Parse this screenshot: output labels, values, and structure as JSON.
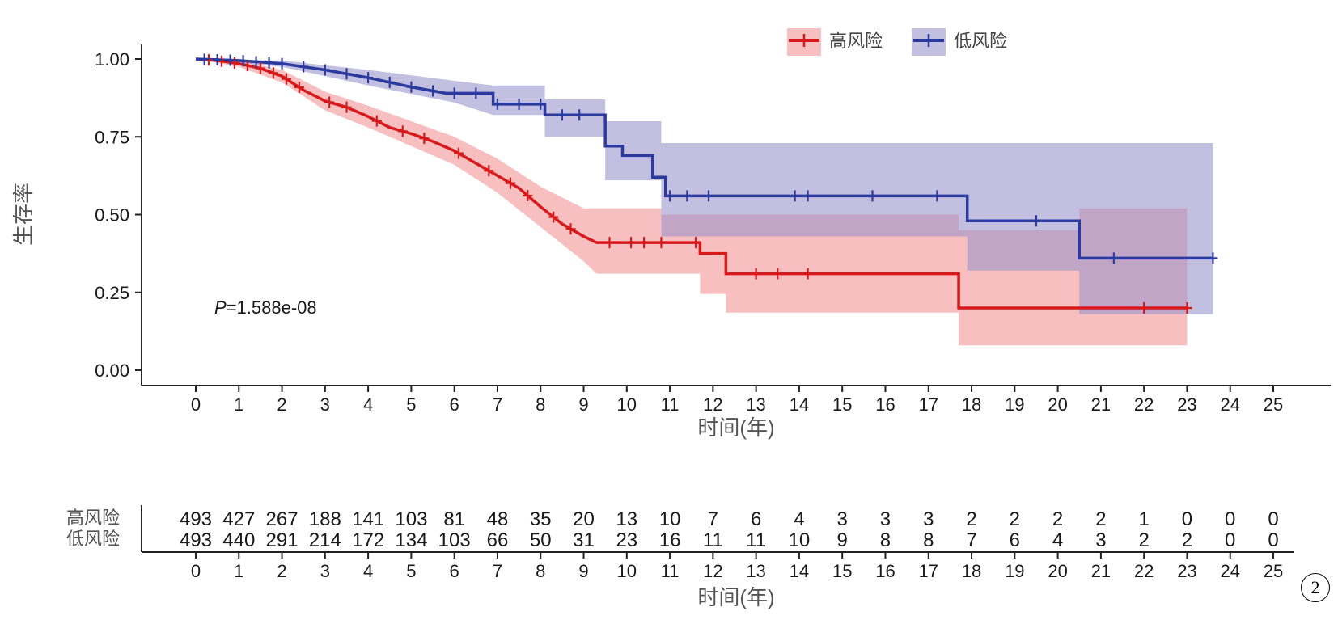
{
  "chart_data": {
    "type": "line",
    "subtype": "kaplan-meier",
    "title": "",
    "ylabel": "生存率",
    "xlabel": "时间(年)",
    "xlim": [
      0,
      25
    ],
    "ylim": [
      0,
      1
    ],
    "x_ticks": [
      0,
      1,
      2,
      3,
      4,
      5,
      6,
      7,
      8,
      9,
      10,
      11,
      12,
      13,
      14,
      15,
      16,
      17,
      18,
      19,
      20,
      21,
      22,
      23,
      24,
      25
    ],
    "y_ticks": [
      "0.00",
      "0.25",
      "0.50",
      "0.75",
      "1.00"
    ],
    "legend_position": "top-right",
    "grid": false,
    "annotation": {
      "prefix": "P",
      "value": "=1.588e-08"
    },
    "series": [
      {
        "name": "高风险",
        "color": "#d7191c",
        "ci_color": "#f08a8a",
        "points": [
          [
            0,
            1.0
          ],
          [
            0.5,
            0.995
          ],
          [
            1,
            0.985
          ],
          [
            1.5,
            0.97
          ],
          [
            2,
            0.945
          ],
          [
            2.5,
            0.9
          ],
          [
            3,
            0.865
          ],
          [
            3.5,
            0.845
          ],
          [
            4,
            0.815
          ],
          [
            4.5,
            0.78
          ],
          [
            5,
            0.76
          ],
          [
            5.5,
            0.735
          ],
          [
            6,
            0.705
          ],
          [
            6.5,
            0.665
          ],
          [
            7,
            0.625
          ],
          [
            7.5,
            0.585
          ],
          [
            8,
            0.525
          ],
          [
            8.5,
            0.47
          ],
          [
            9,
            0.43
          ],
          [
            9.3,
            0.41
          ],
          [
            11.7,
            0.41
          ],
          [
            11.7,
            0.375
          ],
          [
            12.3,
            0.375
          ],
          [
            12.3,
            0.31
          ],
          [
            17.7,
            0.31
          ],
          [
            17.7,
            0.2
          ],
          [
            23,
            0.2
          ]
        ],
        "ci_upper": [
          [
            0,
            1.0
          ],
          [
            1,
            0.995
          ],
          [
            2,
            0.965
          ],
          [
            3,
            0.895
          ],
          [
            4,
            0.85
          ],
          [
            5,
            0.8
          ],
          [
            6,
            0.75
          ],
          [
            7,
            0.68
          ],
          [
            8,
            0.59
          ],
          [
            9,
            0.52
          ],
          [
            10.8,
            0.52
          ],
          [
            10.8,
            0.5
          ],
          [
            17.7,
            0.5
          ],
          [
            17.7,
            0.45
          ],
          [
            20.5,
            0.45
          ],
          [
            20.5,
            0.52
          ],
          [
            23,
            0.52
          ]
        ],
        "ci_lower": [
          [
            0,
            1.0
          ],
          [
            1,
            0.975
          ],
          [
            2,
            0.925
          ],
          [
            3,
            0.835
          ],
          [
            4,
            0.78
          ],
          [
            5,
            0.72
          ],
          [
            6,
            0.66
          ],
          [
            7,
            0.57
          ],
          [
            8,
            0.46
          ],
          [
            9,
            0.35
          ],
          [
            9.3,
            0.31
          ],
          [
            11.7,
            0.31
          ],
          [
            11.7,
            0.245
          ],
          [
            12.3,
            0.245
          ],
          [
            12.3,
            0.185
          ],
          [
            17.7,
            0.185
          ],
          [
            17.7,
            0.08
          ],
          [
            23,
            0.08
          ]
        ],
        "censor_x": [
          0.3,
          0.6,
          0.9,
          1.2,
          1.5,
          1.8,
          2.1,
          2.4,
          3.1,
          3.5,
          4.2,
          4.8,
          5.3,
          6.1,
          6.8,
          7.3,
          7.7,
          8.3,
          8.7,
          9.6,
          10.1,
          10.4,
          10.8,
          11.6,
          13.0,
          13.5,
          14.2,
          22.0,
          23.0
        ]
      },
      {
        "name": "低风险",
        "color": "#2b3a9e",
        "ci_color": "#9b94cc",
        "points": [
          [
            0,
            1.0
          ],
          [
            1,
            0.995
          ],
          [
            2,
            0.985
          ],
          [
            3,
            0.965
          ],
          [
            4,
            0.94
          ],
          [
            5,
            0.91
          ],
          [
            5.8,
            0.89
          ],
          [
            6.9,
            0.89
          ],
          [
            6.9,
            0.855
          ],
          [
            8.1,
            0.855
          ],
          [
            8.1,
            0.82
          ],
          [
            9.5,
            0.82
          ],
          [
            9.5,
            0.72
          ],
          [
            9.9,
            0.72
          ],
          [
            9.9,
            0.69
          ],
          [
            10.6,
            0.69
          ],
          [
            10.6,
            0.62
          ],
          [
            10.9,
            0.62
          ],
          [
            10.9,
            0.56
          ],
          [
            17.9,
            0.56
          ],
          [
            17.9,
            0.48
          ],
          [
            20.5,
            0.48
          ],
          [
            20.5,
            0.36
          ],
          [
            23.6,
            0.36
          ]
        ],
        "ci_upper": [
          [
            0,
            1.0
          ],
          [
            2,
            0.995
          ],
          [
            4,
            0.965
          ],
          [
            6,
            0.93
          ],
          [
            6.9,
            0.915
          ],
          [
            8.1,
            0.915
          ],
          [
            8.1,
            0.87
          ],
          [
            9.5,
            0.87
          ],
          [
            9.5,
            0.8
          ],
          [
            10.8,
            0.8
          ],
          [
            10.8,
            0.73
          ],
          [
            23.6,
            0.73
          ]
        ],
        "ci_lower": [
          [
            0,
            1.0
          ],
          [
            2,
            0.975
          ],
          [
            4,
            0.915
          ],
          [
            6,
            0.86
          ],
          [
            6.9,
            0.82
          ],
          [
            8.1,
            0.82
          ],
          [
            8.1,
            0.75
          ],
          [
            9.5,
            0.75
          ],
          [
            9.5,
            0.61
          ],
          [
            10.8,
            0.61
          ],
          [
            10.8,
            0.43
          ],
          [
            17.9,
            0.43
          ],
          [
            17.9,
            0.32
          ],
          [
            20.5,
            0.32
          ],
          [
            20.5,
            0.18
          ],
          [
            23.6,
            0.18
          ]
        ],
        "censor_x": [
          0.2,
          0.5,
          0.8,
          1.1,
          1.4,
          1.7,
          2.0,
          2.5,
          3.0,
          3.5,
          4.0,
          4.5,
          5.0,
          5.5,
          6.0,
          6.5,
          7.0,
          7.5,
          8.0,
          8.5,
          8.9,
          11.0,
          11.4,
          11.9,
          13.9,
          14.2,
          15.7,
          17.2,
          19.5,
          21.3,
          23.6
        ]
      }
    ],
    "risk_table": {
      "ylabel": "",
      "xlabel": "时间(年)",
      "rows": [
        {
          "name": "高风险",
          "values": [
            493,
            427,
            267,
            188,
            141,
            103,
            81,
            48,
            35,
            20,
            13,
            10,
            7,
            6,
            4,
            3,
            3,
            3,
            2,
            2,
            2,
            2,
            1,
            0,
            0,
            0
          ]
        },
        {
          "name": "低风险",
          "values": [
            493,
            440,
            291,
            214,
            172,
            134,
            103,
            66,
            50,
            31,
            23,
            16,
            11,
            11,
            10,
            9,
            8,
            8,
            7,
            6,
            4,
            3,
            2,
            2,
            0,
            0
          ]
        }
      ]
    }
  },
  "figure_number": "2"
}
